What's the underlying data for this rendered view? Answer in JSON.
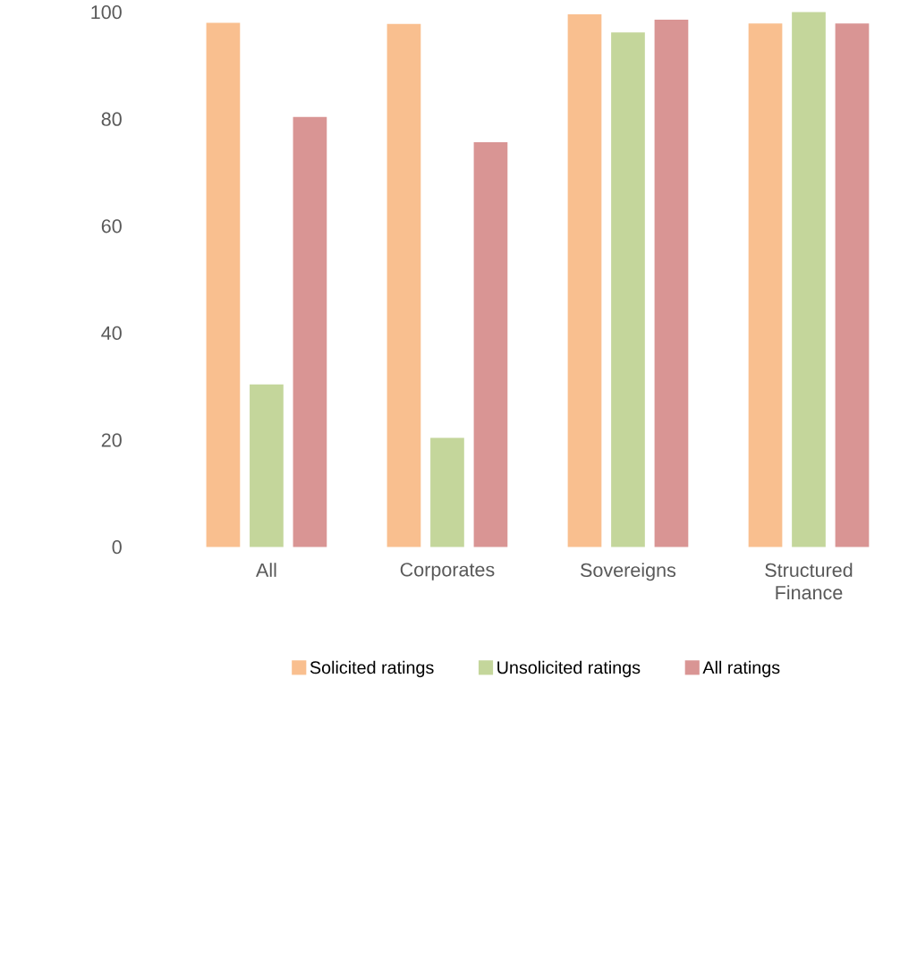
{
  "chart_data": {
    "type": "bar",
    "categories": [
      "All",
      "Corporates",
      "Sovereigns",
      "Structured Finance"
    ],
    "series": [
      {
        "name": "Solicited ratings",
        "color": "#f9bf8f",
        "values": [
          98.0,
          97.8,
          99.6,
          97.9
        ]
      },
      {
        "name": "Unsolicited ratings",
        "color": "#c4d69b",
        "values": [
          30.4,
          20.4,
          96.2,
          100
        ]
      },
      {
        "name": "All ratings",
        "color": "#d99594",
        "values": [
          80.4,
          75.7,
          98.6,
          97.9
        ]
      }
    ],
    "ylim": [
      0,
      100
    ],
    "yticks": [
      0,
      20,
      40,
      60,
      80,
      100
    ],
    "legend": "bottom"
  }
}
